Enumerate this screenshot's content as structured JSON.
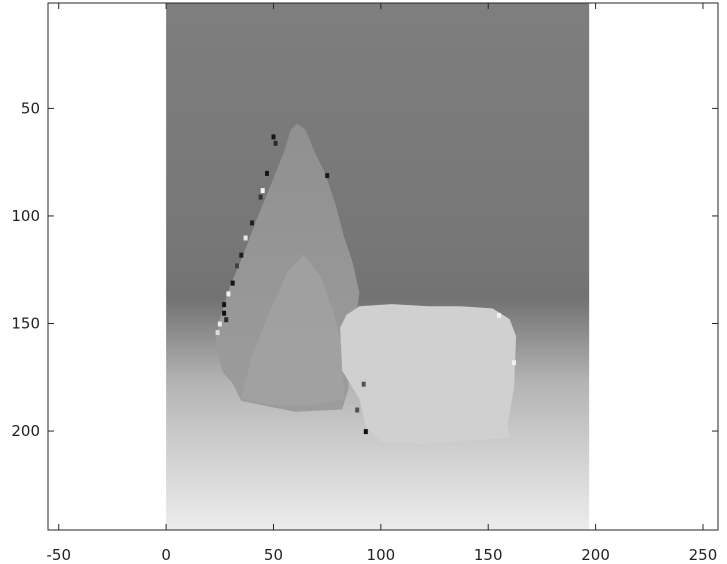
{
  "chart_data": {
    "type": "heatmap",
    "title": "",
    "xlabel": "",
    "ylabel": "",
    "colormap": "gray",
    "xlim": [
      -55,
      257
    ],
    "ylim": [
      246,
      1
    ],
    "image_extent": {
      "x": [
        0,
        197
      ],
      "y": [
        1,
        246
      ]
    },
    "x_ticks": [
      -50,
      0,
      50,
      100,
      150,
      200,
      250
    ],
    "x_tick_labels": [
      "-50",
      "0",
      "50",
      "100",
      "150",
      "200",
      "250"
    ],
    "y_ticks": [
      50,
      100,
      150,
      200
    ],
    "y_tick_labels": [
      "50",
      "100",
      "150",
      "200"
    ],
    "grid": false,
    "legend": "none",
    "colors": {
      "background_top": "#7e7e7e",
      "background_band": "#727272",
      "background_bottom": "#ececec",
      "cone": "#969696",
      "cone_inner": "#a5a5a5",
      "box": "#d0d0d0",
      "dark_speckle": "#151515",
      "light_speckle": "#f4f4f4"
    }
  }
}
